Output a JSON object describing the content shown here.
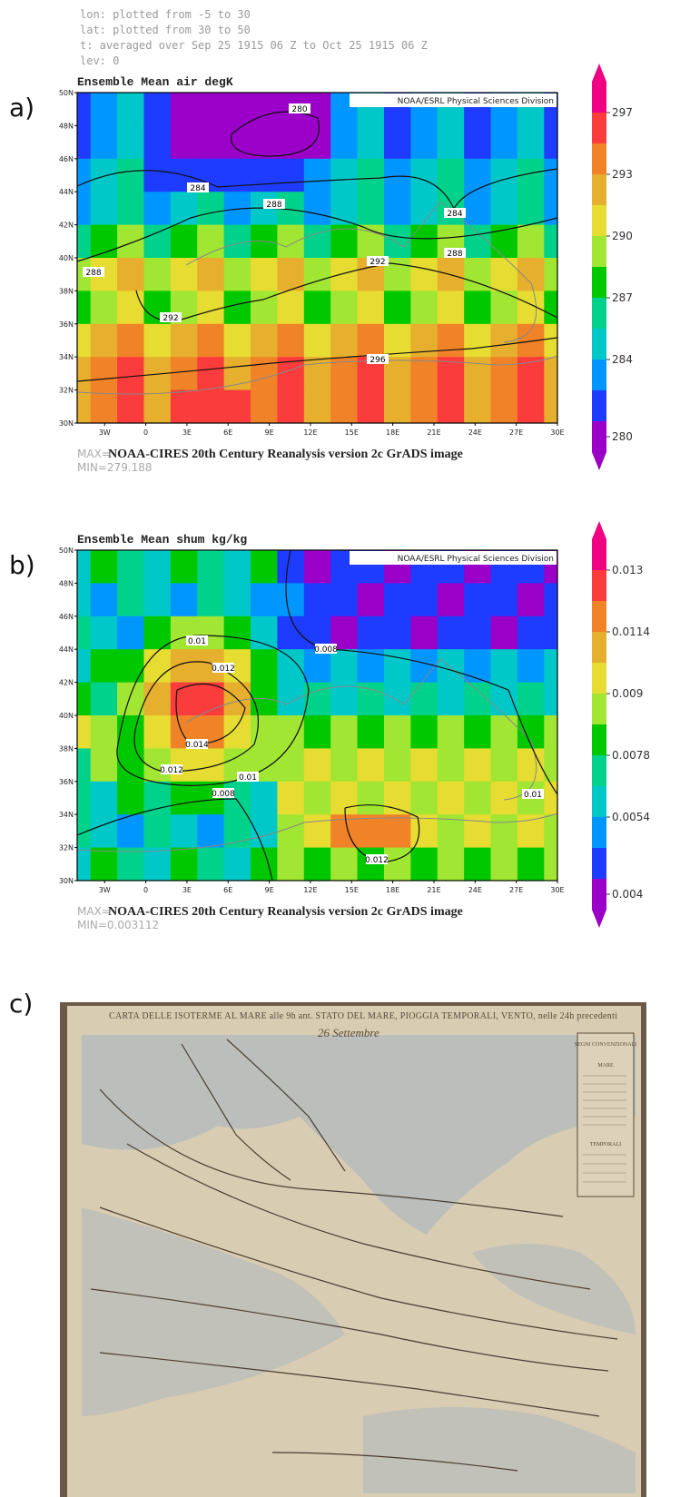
{
  "header": {
    "lines": [
      "lon: plotted from -5 to 30",
      "lat: plotted from 30 to 50",
      "t: averaged over Sep 25 1915 06 Z to Oct 25 1915 06 Z",
      "lev: 0"
    ]
  },
  "panels": [
    {
      "label": "a)",
      "title": "Ensemble Mean air degK",
      "credit": "NOAA/ESRL Physical Sciences Division",
      "lat_ticks": [
        "50N",
        "48N",
        "46N",
        "44N",
        "42N",
        "40N",
        "38N",
        "36N",
        "34N",
        "32N",
        "30N"
      ],
      "lon_ticks": [
        "3W",
        "0",
        "3E",
        "6E",
        "9E",
        "12E",
        "15E",
        "18E",
        "21E",
        "24E",
        "27E",
        "30E"
      ],
      "colorbar_labels": [
        "297",
        "293",
        "290",
        "287",
        "284",
        "280"
      ],
      "contour_labels": [
        "280",
        "284",
        "288",
        "284",
        "288",
        "292",
        "292",
        "288",
        "296"
      ],
      "max_label": "MAX=",
      "footer": "NOAA-CIRES 20th Century Reanalysis version 2c GrADS image",
      "min_label": "MIN=279.188"
    },
    {
      "label": "b)",
      "title": "Ensemble Mean shum kg/kg",
      "credit": "NOAA/ESRL Physical Sciences Division",
      "lat_ticks": [
        "50N",
        "48N",
        "46N",
        "44N",
        "42N",
        "40N",
        "38N",
        "36N",
        "34N",
        "32N",
        "30N"
      ],
      "lon_ticks": [
        "3W",
        "0",
        "3E",
        "6E",
        "9E",
        "12E",
        "15E",
        "18E",
        "21E",
        "24E",
        "27E",
        "30E"
      ],
      "colorbar_labels": [
        "0.013",
        "0.0114",
        "0.009",
        "0.0078",
        "0.0054",
        "0.004"
      ],
      "contour_labels": [
        "0.01",
        "0.012",
        "0.008",
        "0.014",
        "0.012",
        "0.01",
        "0.008",
        "0.012",
        "0.01"
      ],
      "max_label": "MAX=",
      "footer": "NOAA-CIRES 20th Century Reanalysis version 2c GrADS image",
      "min_label": "MIN=0.003112"
    }
  ],
  "photo": {
    "label": "c)",
    "title": "CARTA DELLE ISOTERME AL MARE alle 9h ant. STATO DEL MARE, PIOGGIA TEMPORALI, VENTO, nelle 24h precedenti",
    "date": "26 Settembre",
    "legend": [
      "SEGNI CONVENZIONALI",
      "MARE",
      "TEMPORALI"
    ]
  }
}
